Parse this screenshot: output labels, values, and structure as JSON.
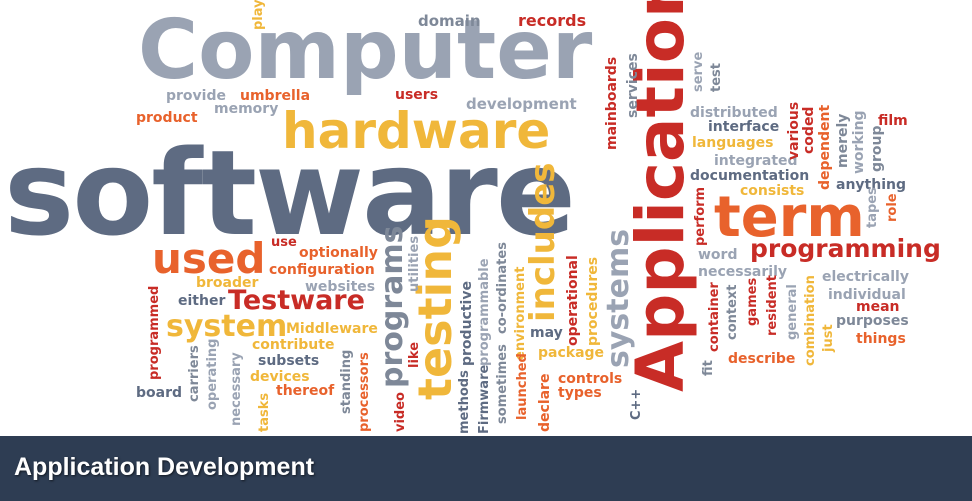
{
  "caption": "Application Development",
  "colors": {
    "grey": "#7e8898",
    "slate": "#5a677d",
    "orange": "#e8622c",
    "gold": "#f0b73a",
    "red": "#c82c26",
    "caption_bar": "#2e3d53",
    "caption_text": "#ffffff"
  },
  "cloud": {
    "computer": "Computer",
    "software": "software",
    "hardware": "hardware",
    "application": "Application",
    "term": "term",
    "programming": "programming",
    "used": "used",
    "testware": "Testware",
    "system": "system",
    "testing": "testing",
    "includes": "includes",
    "programs": "programs",
    "systems": "systems",
    "domain": "domain",
    "records": "records",
    "play": "play",
    "provide": "provide",
    "umbrella": "umbrella",
    "memory": "memory",
    "product": "product",
    "users": "users",
    "development": "development",
    "mainboards": "mainboards",
    "services": "services",
    "serve": "serve",
    "test": "test",
    "distributed": "distributed",
    "interface": "interface",
    "languages": "languages",
    "integrated": "integrated",
    "documentation": "documentation",
    "consists": "consists",
    "various": "various",
    "coded": "coded",
    "dependent": "dependent",
    "merely": "merely",
    "working": "working",
    "group": "group",
    "film": "film",
    "anything": "anything",
    "tapes": "tapes",
    "role": "role",
    "perform": "perform",
    "word": "word",
    "necessarily": "necessarily",
    "electrically": "electrically",
    "individual": "individual",
    "purposes": "purposes",
    "mean": "mean",
    "things": "things",
    "describe": "describe",
    "container": "container",
    "context": "context",
    "games": "games",
    "resident": "resident",
    "general": "general",
    "combination": "combination",
    "just": "just",
    "fit": "fit",
    "use": "use",
    "optionally": "optionally",
    "configuration": "configuration",
    "broader": "broader",
    "websites": "websites",
    "either": "either",
    "middleware": "Middleware",
    "contribute": "contribute",
    "subsets": "subsets",
    "devices": "devices",
    "thereof": "thereof",
    "programmed": "programmed",
    "carriers": "carriers",
    "operating": "operating",
    "necessary": "necessary",
    "tasks": "tasks",
    "board": "board",
    "standing": "standing",
    "processors": "processors",
    "video": "video",
    "like": "like",
    "utilities": "utilities",
    "methods": "methods",
    "productive": "productive",
    "firmware": "Firmware",
    "programmable": "programmable",
    "sometimes": "sometimes",
    "coordinates": "co-ordinates",
    "environment": "environment",
    "launched": "launched",
    "declare": "declare",
    "may": "may",
    "operational": "operational",
    "procedures": "procedures",
    "package": "package",
    "controls": "controls",
    "types": "types",
    "cpp": "C++"
  }
}
